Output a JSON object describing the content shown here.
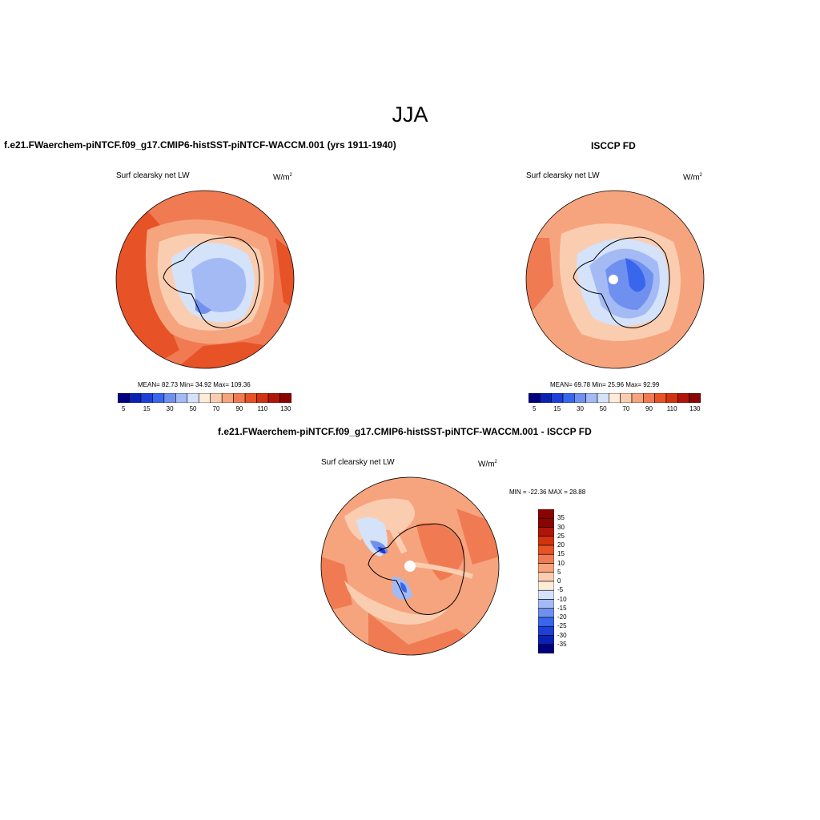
{
  "title": "JJA",
  "panels": [
    {
      "title": "f.e21.FWaerchem-piNTCF.f09_g17.CMIP6-histSST-piNTCF-WACCM.001 (yrs 1911-1940)",
      "variable": "Surf clearsky net LW",
      "units": "W/m",
      "units_exp": "2",
      "stats": "MEAN=  82.73  Min=  34.92  Max= 109.36"
    },
    {
      "title": "ISCCP FD",
      "variable": "Surf clearsky net LW",
      "units": "W/m",
      "units_exp": "2",
      "stats": "MEAN=  69.78  Min=  25.96  Max=  92.99"
    },
    {
      "title": "f.e21.FWaerchem-piNTCF.f09_g17.CMIP6-histSST-piNTCF-WACCM.001 - ISCCP FD",
      "variable": "Surf clearsky net LW",
      "units": "W/m",
      "units_exp": "2",
      "stats": "MIN = -22.36 MAX =  28.88"
    }
  ],
  "colorbar_abs": {
    "colors": [
      "#00007f",
      "#0a22b4",
      "#1c3fd8",
      "#3866ec",
      "#7090f0",
      "#a4baf4",
      "#d4e2fa",
      "#fdecd8",
      "#fbcdb0",
      "#f6a47e",
      "#f07b52",
      "#e75227",
      "#d2330f",
      "#b0150a",
      "#8a0402"
    ],
    "tick_labels": [
      "5",
      "15",
      "30",
      "50",
      "70",
      "90",
      "110",
      "130"
    ]
  },
  "colorbar_diff": {
    "colors": [
      "#8a0402",
      "#b0150a",
      "#d2330f",
      "#e75227",
      "#f07b52",
      "#f6a47e",
      "#fbcdb0",
      "#fdecd8",
      "#d4e2fa",
      "#a4baf4",
      "#7090f0",
      "#3866ec",
      "#1c3fd8",
      "#0a22b4",
      "#00007f"
    ],
    "tick_labels": [
      "35",
      "30",
      "25",
      "20",
      "15",
      "10",
      "5",
      "0",
      "-5",
      "-10",
      "-15",
      "-20",
      "-25",
      "-30",
      "-35"
    ]
  }
}
